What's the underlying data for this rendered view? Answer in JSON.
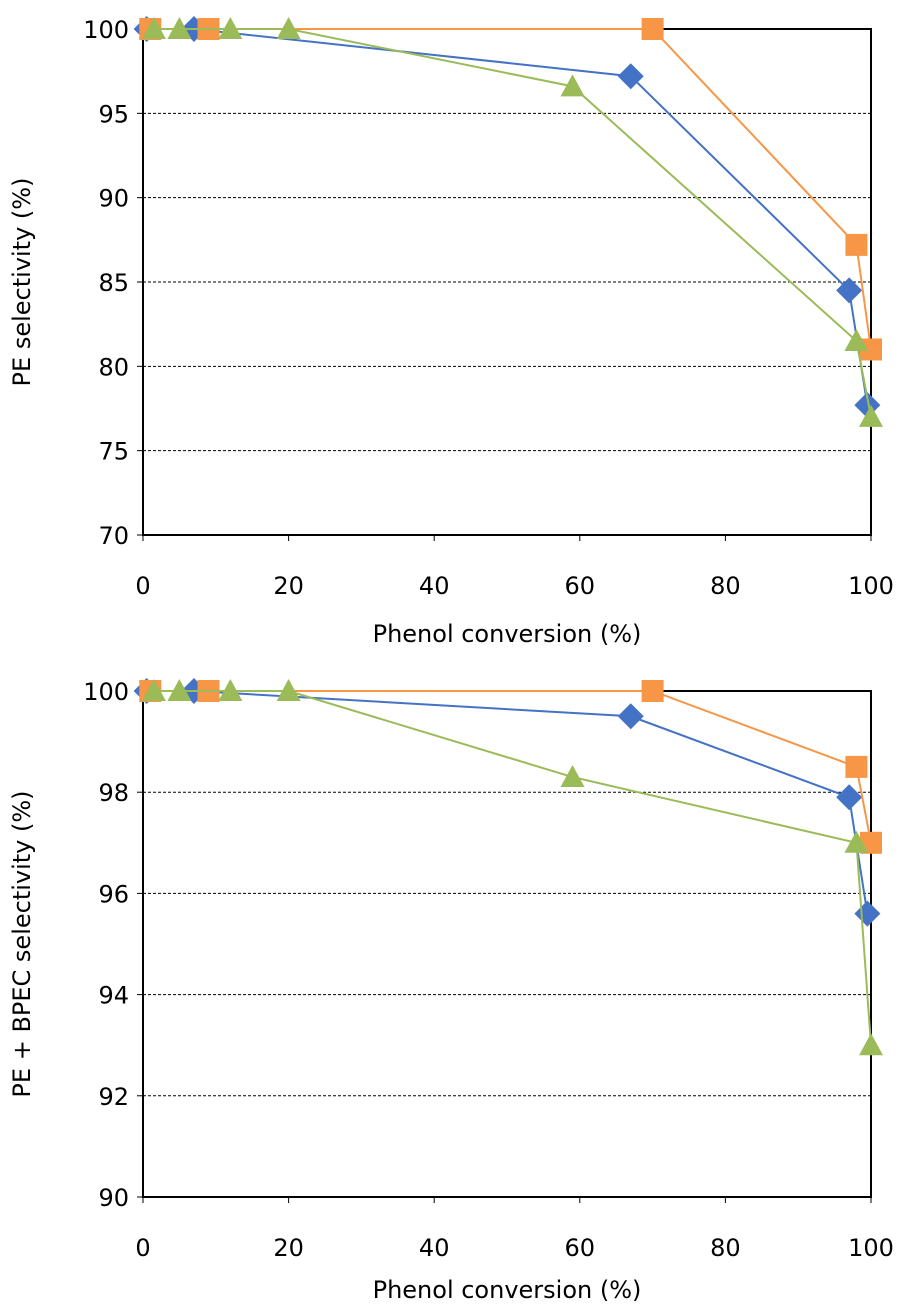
{
  "chart_data": [
    {
      "type": "scatter",
      "title": "",
      "xlabel": "Phenol conversion (%)",
      "ylabel": "PE selectivity (%)",
      "xlim": [
        0,
        100
      ],
      "ylim": [
        70,
        100
      ],
      "x_ticks": [
        0,
        20,
        40,
        60,
        80,
        100
      ],
      "y_ticks": [
        70,
        75,
        80,
        85,
        90,
        95,
        100
      ],
      "grid": "horizontal dashed",
      "legend": "none",
      "series": [
        {
          "marker": "diamond",
          "color": "#4472C4",
          "points": [
            [
              0.5,
              100
            ],
            [
              7,
              100
            ],
            [
              67,
              97.2
            ],
            [
              97,
              84.5
            ],
            [
              99.5,
              77.7
            ]
          ]
        },
        {
          "marker": "square",
          "color": "#F79646",
          "points": [
            [
              1,
              100
            ],
            [
              9,
              100
            ],
            [
              70,
              100
            ],
            [
              98,
              87.2
            ],
            [
              100,
              81
            ]
          ]
        },
        {
          "marker": "triangle",
          "color": "#9BBB59",
          "points": [
            [
              1.5,
              100
            ],
            [
              5,
              100
            ],
            [
              12,
              100
            ],
            [
              20,
              100
            ],
            [
              59,
              96.6
            ],
            [
              98,
              81.5
            ],
            [
              100,
              77
            ]
          ]
        }
      ]
    },
    {
      "type": "scatter",
      "title": "",
      "xlabel": "Phenol conversion (%)",
      "ylabel": "PE + BPEC selectivity (%)",
      "xlim": [
        0,
        100
      ],
      "ylim": [
        90,
        100
      ],
      "x_ticks": [
        0,
        20,
        40,
        60,
        80,
        100
      ],
      "y_ticks": [
        90,
        92,
        94,
        96,
        98,
        100
      ],
      "grid": "horizontal dashed",
      "legend": "none",
      "series": [
        {
          "marker": "diamond",
          "color": "#4472C4",
          "points": [
            [
              0.5,
              100
            ],
            [
              7,
              100
            ],
            [
              67,
              99.5
            ],
            [
              97,
              97.9
            ],
            [
              99.5,
              95.6
            ]
          ]
        },
        {
          "marker": "square",
          "color": "#F79646",
          "points": [
            [
              1,
              100
            ],
            [
              9,
              100
            ],
            [
              70,
              100
            ],
            [
              98,
              98.5
            ],
            [
              100,
              97
            ]
          ]
        },
        {
          "marker": "triangle",
          "color": "#9BBB59",
          "points": [
            [
              1.5,
              100
            ],
            [
              5,
              100
            ],
            [
              12,
              100
            ],
            [
              20,
              100
            ],
            [
              59,
              98.3
            ],
            [
              98,
              97
            ],
            [
              100,
              93
            ]
          ]
        }
      ]
    }
  ]
}
